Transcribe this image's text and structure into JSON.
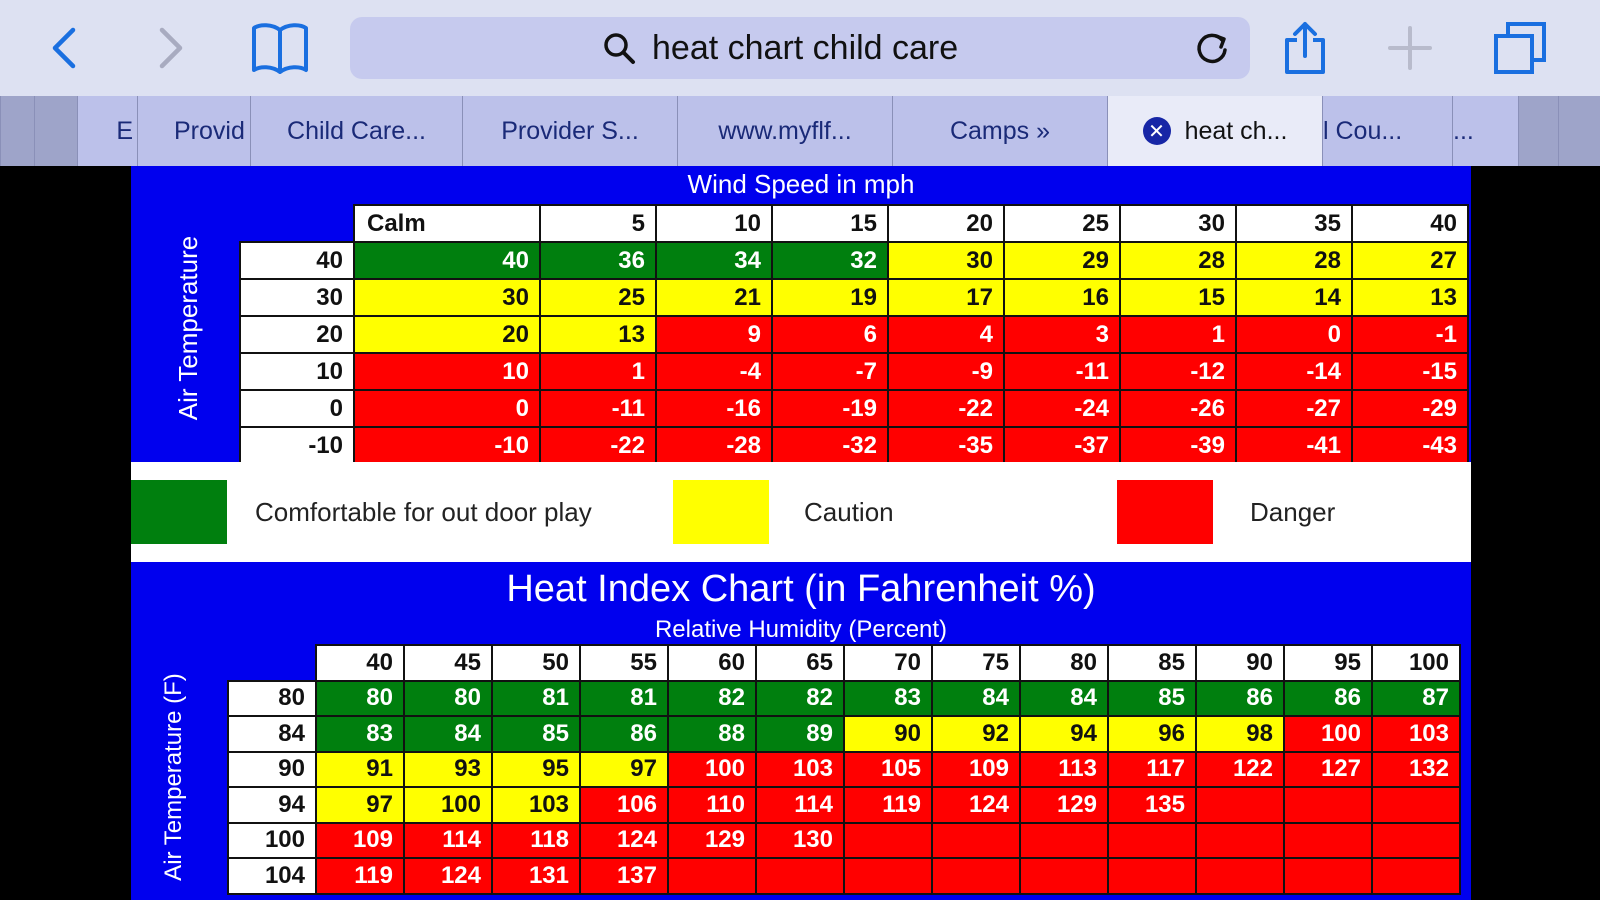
{
  "browser": {
    "url_query": "heat chart child care",
    "tabs": [
      {
        "label": "E"
      },
      {
        "label": "Provid"
      },
      {
        "label": "Child Care..."
      },
      {
        "label": "Provider S..."
      },
      {
        "label": "www.myflf..."
      },
      {
        "label": "Camps »"
      },
      {
        "label": "heat ch..."
      },
      {
        "label": "l Cou..."
      },
      {
        "label": "..."
      }
    ],
    "active_tab": 6,
    "icons": [
      "back-icon",
      "forward-icon",
      "bookmarks-icon",
      "search-icon",
      "reload-icon",
      "share-icon",
      "new-tab-icon",
      "tabs-icon",
      "close-tab-icon"
    ]
  },
  "wind_chart": {
    "title": "Wind Speed in mph",
    "axis_label": "Air Temperature",
    "columns": [
      "Calm",
      "5",
      "10",
      "15",
      "20",
      "25",
      "30",
      "35",
      "40"
    ],
    "rows": [
      {
        "temp": "40",
        "values": [
          "40",
          "36",
          "34",
          "32",
          "30",
          "29",
          "28",
          "28",
          "27"
        ],
        "levels": [
          "g",
          "g",
          "g",
          "g",
          "y",
          "y",
          "y",
          "y",
          "y"
        ]
      },
      {
        "temp": "30",
        "values": [
          "30",
          "25",
          "21",
          "19",
          "17",
          "16",
          "15",
          "14",
          "13"
        ],
        "levels": [
          "y",
          "y",
          "y",
          "y",
          "y",
          "y",
          "y",
          "y",
          "y"
        ]
      },
      {
        "temp": "20",
        "values": [
          "20",
          "13",
          "9",
          "6",
          "4",
          "3",
          "1",
          "0",
          "-1"
        ],
        "levels": [
          "y",
          "y",
          "r",
          "r",
          "r",
          "r",
          "r",
          "r",
          "r"
        ]
      },
      {
        "temp": "10",
        "values": [
          "10",
          "1",
          "-4",
          "-7",
          "-9",
          "-11",
          "-12",
          "-14",
          "-15"
        ],
        "levels": [
          "r",
          "r",
          "r",
          "r",
          "r",
          "r",
          "r",
          "r",
          "r"
        ]
      },
      {
        "temp": "0",
        "values": [
          "0",
          "-11",
          "-16",
          "-19",
          "-22",
          "-24",
          "-26",
          "-27",
          "-29"
        ],
        "levels": [
          "r",
          "r",
          "r",
          "r",
          "r",
          "r",
          "r",
          "r",
          "r"
        ]
      },
      {
        "temp": "-10",
        "values": [
          "-10",
          "-22",
          "-28",
          "-32",
          "-35",
          "-37",
          "-39",
          "-41",
          "-43"
        ],
        "levels": [
          "r",
          "r",
          "r",
          "r",
          "r",
          "r",
          "r",
          "r",
          "r"
        ]
      }
    ]
  },
  "legend": {
    "comfortable": {
      "label": "Comfortable for out door play",
      "color": "#007f0e"
    },
    "caution": {
      "label": "Caution",
      "color": "#ffff00"
    },
    "danger": {
      "label": "Danger",
      "color": "#ff0000"
    }
  },
  "heat_chart": {
    "title": "Heat Index Chart (in Fahrenheit %)",
    "subtitle": "Relative Humidity (Percent)",
    "axis_label": "Air Temperature (F)",
    "columns": [
      "40",
      "45",
      "50",
      "55",
      "60",
      "65",
      "70",
      "75",
      "80",
      "85",
      "90",
      "95",
      "100"
    ],
    "rows": [
      {
        "temp": "80",
        "values": [
          "80",
          "80",
          "81",
          "81",
          "82",
          "82",
          "83",
          "84",
          "84",
          "85",
          "86",
          "86",
          "87"
        ],
        "levels": [
          "g",
          "g",
          "g",
          "g",
          "g",
          "g",
          "g",
          "g",
          "g",
          "g",
          "g",
          "g",
          "g"
        ]
      },
      {
        "temp": "84",
        "values": [
          "83",
          "84",
          "85",
          "86",
          "88",
          "89",
          "90",
          "92",
          "94",
          "96",
          "98",
          "100",
          "103"
        ],
        "levels": [
          "g",
          "g",
          "g",
          "g",
          "g",
          "g",
          "y",
          "y",
          "y",
          "y",
          "y",
          "r",
          "r"
        ]
      },
      {
        "temp": "90",
        "values": [
          "91",
          "93",
          "95",
          "97",
          "100",
          "103",
          "105",
          "109",
          "113",
          "117",
          "122",
          "127",
          "132"
        ],
        "levels": [
          "y",
          "y",
          "y",
          "y",
          "r",
          "r",
          "r",
          "r",
          "r",
          "r",
          "r",
          "r",
          "r"
        ]
      },
      {
        "temp": "94",
        "values": [
          "97",
          "100",
          "103",
          "106",
          "110",
          "114",
          "119",
          "124",
          "129",
          "135",
          "",
          "",
          ""
        ],
        "levels": [
          "y",
          "y",
          "y",
          "r",
          "r",
          "r",
          "r",
          "r",
          "r",
          "r",
          "r",
          "r",
          "r"
        ]
      },
      {
        "temp": "100",
        "values": [
          "109",
          "114",
          "118",
          "124",
          "129",
          "130",
          "",
          "",
          "",
          "",
          "",
          "",
          ""
        ],
        "levels": [
          "r",
          "r",
          "r",
          "r",
          "r",
          "r",
          "r",
          "r",
          "r",
          "r",
          "r",
          "r",
          "r"
        ]
      },
      {
        "temp": "104",
        "values": [
          "119",
          "124",
          "131",
          "137",
          "",
          "",
          "",
          "",
          "",
          "",
          "",
          "",
          ""
        ],
        "levels": [
          "r",
          "r",
          "r",
          "r",
          "r",
          "r",
          "r",
          "r",
          "r",
          "r",
          "r",
          "r",
          "r"
        ]
      }
    ]
  }
}
